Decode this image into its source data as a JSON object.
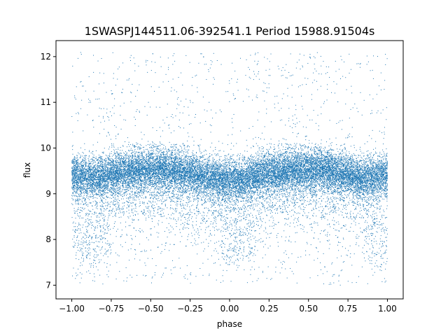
{
  "colors": {
    "points": "#1f77b4",
    "axes": "#000000",
    "background": "#ffffff"
  },
  "chart_data": {
    "type": "scatter",
    "title": "1SWASPJ144511.06-392541.1 Period 15988.91504s",
    "xlabel": "phase",
    "ylabel": "flux",
    "xlim": [
      -1.1,
      1.1
    ],
    "ylim": [
      6.7,
      12.35
    ],
    "xticks": [
      -1.0,
      -0.75,
      -0.5,
      -0.25,
      0.0,
      0.25,
      0.5,
      0.75,
      1.0
    ],
    "xtick_labels": [
      "−1.00",
      "−0.75",
      "−0.50",
      "−0.25",
      "0.00",
      "0.25",
      "0.50",
      "0.75",
      "1.00"
    ],
    "yticks": [
      7,
      8,
      9,
      10,
      11,
      12
    ],
    "ytick_labels": [
      "7",
      "8",
      "9",
      "10",
      "11",
      "12"
    ],
    "grid": false,
    "series": [
      {
        "marker": "dot",
        "profile": {
          "phase": [
            -1.0,
            -0.9,
            -0.8,
            -0.7,
            -0.6,
            -0.5,
            -0.4,
            -0.3,
            -0.2,
            -0.1,
            0.0,
            0.1,
            0.2,
            0.3,
            0.4,
            0.5,
            0.6,
            0.7,
            0.8,
            0.9,
            1.0
          ],
          "median_flux": [
            9.45,
            9.35,
            9.4,
            9.5,
            9.55,
            9.55,
            9.55,
            9.5,
            9.45,
            9.35,
            9.3,
            9.35,
            9.45,
            9.5,
            9.55,
            9.55,
            9.55,
            9.5,
            9.4,
            9.35,
            9.45
          ]
        },
        "eclipse_centers": [
          -0.87,
          0.05,
          0.97
        ],
        "eclipse_depth_min": 7.5,
        "band_range": [
          9.0,
          10.0
        ],
        "scatter_range": [
          7.0,
          12.1
        ]
      }
    ]
  }
}
